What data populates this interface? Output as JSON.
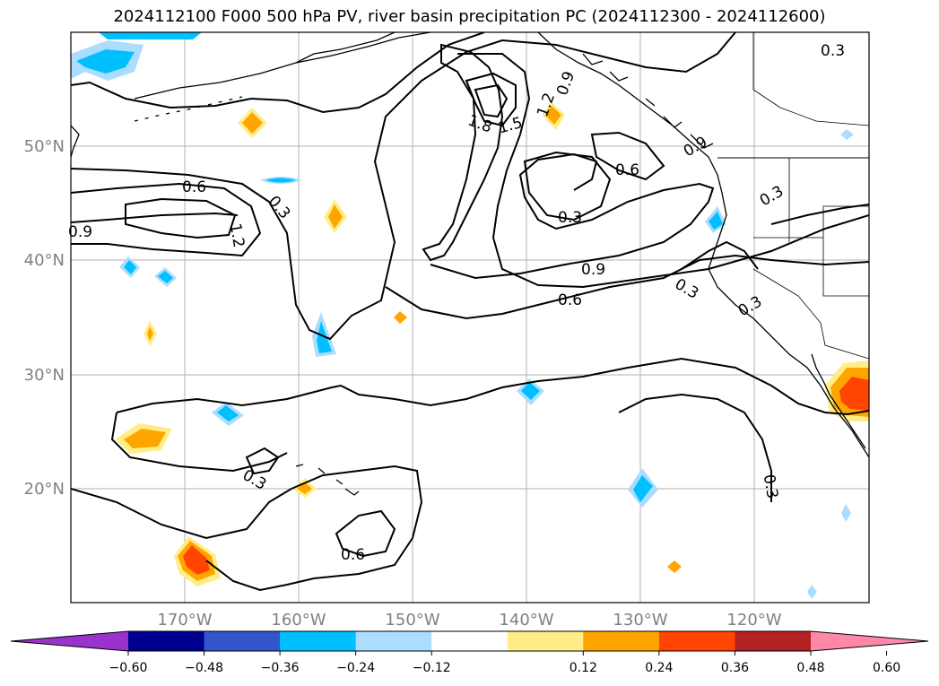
{
  "title": "2024112100 F000 500 hPa PV, river basin precipitation PC (2024112300 - 2024112600)",
  "lat_labels": [
    "50°N",
    "40°N",
    "30°N",
    "20°N"
  ],
  "lon_labels": [
    "170°W",
    "160°W",
    "150°W",
    "140°W",
    "130°W",
    "120°W"
  ],
  "contour_labels": [
    "0.3",
    "0.9",
    "0.6",
    "1.2",
    "0.3",
    "1.8",
    "1.5",
    "1.2",
    "0.9",
    "0.6",
    "0.3",
    "0.9",
    "0.6",
    "0.3",
    "0.3",
    "0.3",
    "0.3",
    "0.6",
    "0.3",
    "0.9"
  ],
  "colorbar": {
    "colors": [
      "#9933cc",
      "#000090",
      "#3355cc",
      "#00bfff",
      "#aaddff",
      "#ffffff",
      "#ffee88",
      "#ffa500",
      "#ff4500",
      "#b22222",
      "#ff88aa"
    ],
    "tick_labels": [
      "−0.60",
      "−0.48",
      "−0.36",
      "−0.24",
      "−0.12",
      "0.12",
      "0.24",
      "0.36",
      "0.48",
      "0.60"
    ]
  }
}
